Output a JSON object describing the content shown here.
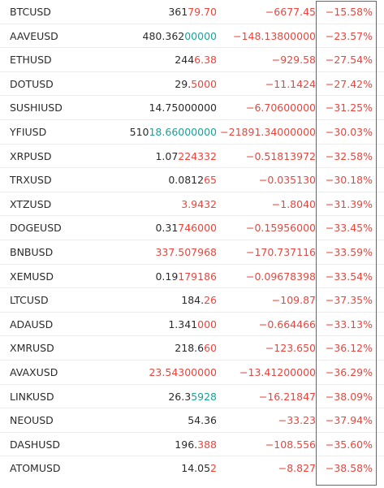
{
  "colors": {
    "up": "#17a398",
    "down": "#e9453d",
    "highlight_frame": "#d43a34"
  },
  "rows": [
    {
      "symbol": "BTCUSD",
      "price_base": "361",
      "price_hl": "79.70",
      "price_hl_color": "red",
      "change": "−6677.45",
      "percent": "−15.58%"
    },
    {
      "symbol": "AAVEUSD",
      "price_base": "480.362",
      "price_hl": "00000",
      "price_hl_color": "green",
      "change": "−148.13800000",
      "percent": "−23.57%"
    },
    {
      "symbol": "ETHUSD",
      "price_base": "244",
      "price_hl": "6.38",
      "price_hl_color": "red",
      "change": "−929.58",
      "percent": "−27.54%"
    },
    {
      "symbol": "DOTUSD",
      "price_base": "29.",
      "price_hl": "5000",
      "price_hl_color": "red",
      "change": "−11.1424",
      "percent": "−27.42%"
    },
    {
      "symbol": "SUSHIUSD",
      "price_base": "14.75000000",
      "price_hl": "",
      "price_hl_color": "red",
      "change": "−6.70600000",
      "percent": "−31.25%"
    },
    {
      "symbol": "YFIUSD",
      "price_base": "510",
      "price_hl": "18.66000000",
      "price_hl_color": "green",
      "change": "−21891.34000000",
      "percent": "−30.03%"
    },
    {
      "symbol": "XRPUSD",
      "price_base": "1.07",
      "price_hl": "224332",
      "price_hl_color": "red",
      "change": "−0.51813972",
      "percent": "−32.58%"
    },
    {
      "symbol": "TRXUSD",
      "price_base": "0.0812",
      "price_hl": "65",
      "price_hl_color": "red",
      "change": "−0.035130",
      "percent": "−30.18%"
    },
    {
      "symbol": "XTZUSD",
      "price_base": "",
      "price_hl": "3.9432",
      "price_hl_color": "red",
      "change": "−1.8040",
      "percent": "−31.39%"
    },
    {
      "symbol": "DOGEUSD",
      "price_base": "0.31",
      "price_hl": "746000",
      "price_hl_color": "red",
      "change": "−0.15956000",
      "percent": "−33.45%"
    },
    {
      "symbol": "BNBUSD",
      "price_base": "",
      "price_hl": "337.507968",
      "price_hl_color": "red",
      "change": "−170.737116",
      "percent": "−33.59%"
    },
    {
      "symbol": "XEMUSD",
      "price_base": "0.19",
      "price_hl": "179186",
      "price_hl_color": "red",
      "change": "−0.09678398",
      "percent": "−33.54%"
    },
    {
      "symbol": "LTCUSD",
      "price_base": "184.",
      "price_hl": "26",
      "price_hl_color": "red",
      "change": "−109.87",
      "percent": "−37.35%"
    },
    {
      "symbol": "ADAUSD",
      "price_base": "1.341",
      "price_hl": "000",
      "price_hl_color": "red",
      "change": "−0.664466",
      "percent": "−33.13%"
    },
    {
      "symbol": "XMRUSD",
      "price_base": "218.6",
      "price_hl": "60",
      "price_hl_color": "red",
      "change": "−123.650",
      "percent": "−36.12%"
    },
    {
      "symbol": "AVAXUSD",
      "price_base": "",
      "price_hl": "23.54300000",
      "price_hl_color": "red",
      "change": "−13.41200000",
      "percent": "−36.29%"
    },
    {
      "symbol": "LINKUSD",
      "price_base": "26.3",
      "price_hl": "5928",
      "price_hl_color": "green",
      "change": "−16.21847",
      "percent": "−38.09%"
    },
    {
      "symbol": "NEOUSD",
      "price_base": "54.36",
      "price_hl": "",
      "price_hl_color": "red",
      "change": "−33.23",
      "percent": "−37.94%"
    },
    {
      "symbol": "DASHUSD",
      "price_base": "196.",
      "price_hl": "388",
      "price_hl_color": "red",
      "change": "−108.556",
      "percent": "−35.60%"
    },
    {
      "symbol": "ATOMUSD",
      "price_base": "14.05",
      "price_hl": "2",
      "price_hl_color": "red",
      "change": "−8.827",
      "percent": "−38.58%"
    }
  ]
}
